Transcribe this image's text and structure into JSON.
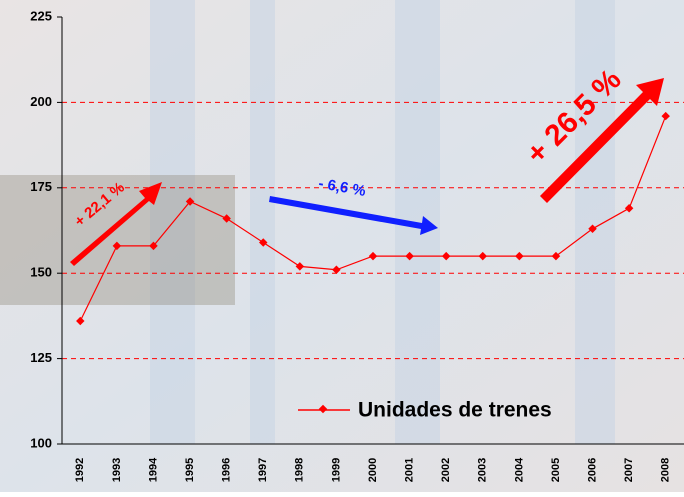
{
  "chart_data": {
    "type": "line",
    "categories": [
      "1992",
      "1993",
      "1994",
      "1995",
      "1996",
      "1997",
      "1998",
      "1999",
      "2000",
      "2001",
      "2002",
      "2003",
      "2004",
      "2005",
      "2006",
      "2007",
      "2008"
    ],
    "series": [
      {
        "name": "Unidades de trenes",
        "color": "#ff0000",
        "values": [
          136,
          158,
          158,
          171,
          166,
          159,
          152,
          151,
          155,
          155,
          155,
          155,
          155,
          155,
          163,
          169,
          196
        ]
      }
    ],
    "ylim": [
      100,
      225
    ],
    "yticks": [
      100,
      125,
      150,
      175,
      200,
      225
    ],
    "grid": true,
    "annotations": [
      "+ 22,1 %",
      "- 6,6 %",
      "+ 26,5 %"
    ]
  }
}
